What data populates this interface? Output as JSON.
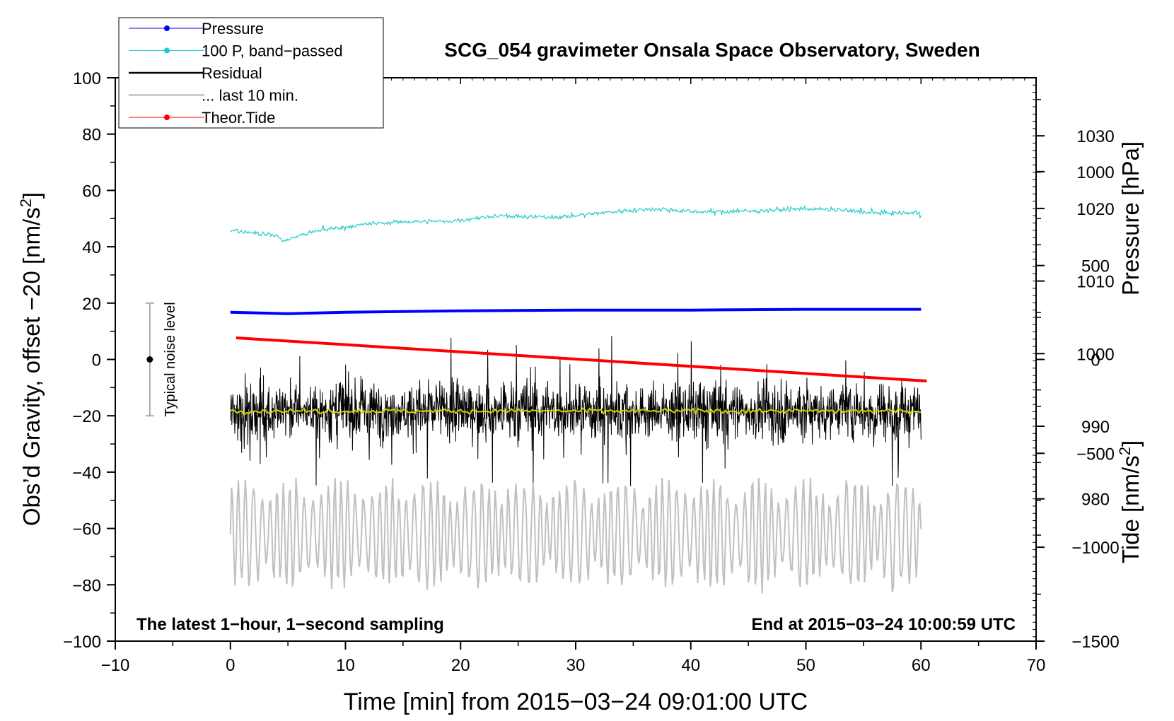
{
  "chart_data": {
    "type": "line",
    "title": "SCG_054 gravimeter Onsala Space Observatory, Sweden",
    "xlabel": "Time [min] from 2015−03−24 09:01:00 UTC",
    "ylabel_left_main": "Obs’d Gravity, offset −20 [nm/s",
    "ylabel_left_sup": "2",
    "ylabel_left_close": "]",
    "ylabel_right_pressure": "Pressure [hPa]",
    "ylabel_right_tide_main": "Tide [nm/s",
    "ylabel_right_tide_sup": "2",
    "ylabel_right_tide_close": "]",
    "note_left": "The latest 1−hour, 1−second sampling",
    "note_right": "End at 2015−03−24 10:00:59 UTC",
    "noise_label": "Typical noise level",
    "noise_level": {
      "x": -7,
      "center": 0,
      "low": -20,
      "high": 20
    },
    "xlim": [
      -10,
      70
    ],
    "ylim": [
      -100,
      100
    ],
    "pressure_lim": [
      960.4,
      1038
    ],
    "tide_lim": [
      -1500,
      1500
    ],
    "x_ticks": [
      -10,
      0,
      10,
      20,
      30,
      40,
      50,
      60,
      70
    ],
    "x_tick_labels": [
      "−10",
      "0",
      "10",
      "20",
      "30",
      "40",
      "50",
      "60",
      "70"
    ],
    "y_ticks": [
      -100,
      -80,
      -60,
      -40,
      -20,
      0,
      20,
      40,
      60,
      80,
      100
    ],
    "y_tick_labels": [
      "−100",
      "−80",
      "−60",
      "−40",
      "−20",
      "0",
      "20",
      "40",
      "60",
      "80",
      "100"
    ],
    "pressure_ticks": [
      980,
      990,
      1000,
      1010,
      1020,
      1030
    ],
    "pressure_tick_labels": [
      "980",
      "990",
      "1000",
      "1010",
      "1020",
      "1030"
    ],
    "tide_ticks": [
      -1500,
      -1000,
      -500,
      0,
      500,
      1000
    ],
    "tide_tick_labels": [
      "−1500",
      "−1000",
      "−500",
      "0",
      "500",
      "1000"
    ],
    "legend": {
      "position": "top-left",
      "entries": [
        "Pressure",
        "100 P, band−passed",
        "Residual",
        "... last 10 min.",
        "Theor.Tide"
      ]
    },
    "colors": {
      "pressure": "#0000ff",
      "bandpassed": "#22cccc",
      "residual": "#000000",
      "last10": "#c0c0c0",
      "tide": "#ff0000",
      "smoothed": "#d4d400"
    },
    "series": [
      {
        "name": "Pressure",
        "axis": "pressure",
        "x": [
          0,
          5,
          10,
          20,
          30,
          40,
          50,
          60
        ],
        "values": [
          1005.7,
          1005.5,
          1005.7,
          1005.9,
          1006.0,
          1006.0,
          1006.1,
          1006.1
        ]
      },
      {
        "name": "100 P, band−passed",
        "axis": "left",
        "x": [
          0,
          2,
          4,
          4.7,
          6,
          8,
          10,
          13,
          16,
          19,
          21,
          23,
          26,
          28,
          30,
          32,
          35,
          37,
          40,
          44,
          47,
          50,
          53,
          56,
          58,
          60
        ],
        "values": [
          46,
          45,
          44,
          42,
          44,
          46,
          47,
          48.5,
          49,
          49,
          50,
          51,
          50.5,
          50.5,
          51,
          52,
          53,
          53.5,
          52.5,
          52.5,
          53,
          53.5,
          53,
          52,
          52,
          52
        ]
      },
      {
        "name": "Residual",
        "axis": "left",
        "x": [
          0,
          60
        ],
        "mean": -18.3,
        "typical_range": [
          -30,
          -7
        ],
        "extremes": [
          -45,
          11
        ]
      },
      {
        "name": "... last 10 min.",
        "axis": "left",
        "x": [
          0,
          60
        ],
        "mean": -62,
        "typical_range": [
          -82,
          -44
        ],
        "extremes": [
          -85,
          -42
        ]
      },
      {
        "name": "Theor.Tide",
        "axis": "tide",
        "x": [
          0.5,
          60.5
        ],
        "values": [
          115,
          -115
        ]
      }
    ]
  }
}
